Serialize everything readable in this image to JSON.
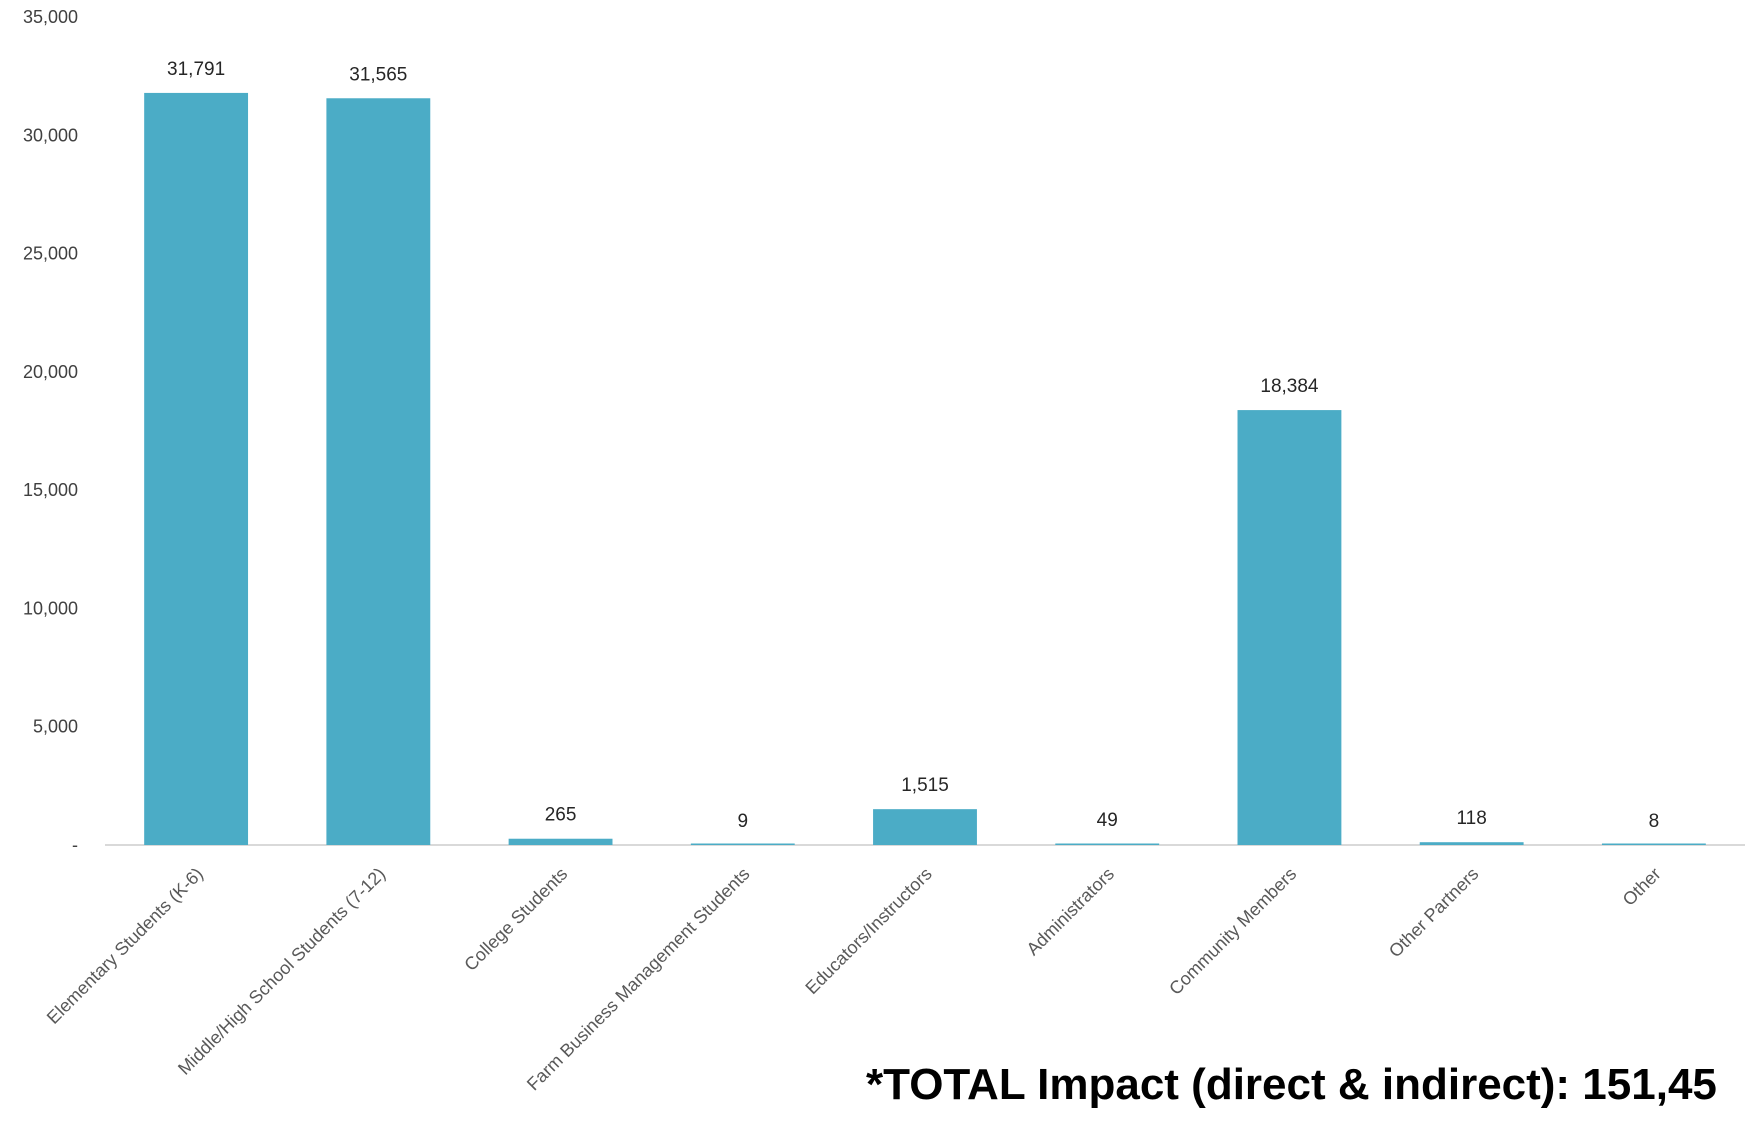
{
  "chart_data": {
    "type": "bar",
    "categories": [
      "Elementary Students (K-6)",
      "Middle/High School Students (7-12)",
      "College Students",
      "Farm Business Management Students",
      "Educators/Instructors",
      "Administrators",
      "Community Members",
      "Other Partners",
      "Other"
    ],
    "values": [
      31791,
      31565,
      265,
      9,
      1515,
      49,
      18384,
      118,
      8
    ],
    "data_labels": [
      "31,791",
      "31,565",
      "265",
      "9",
      "1,515",
      "49",
      "18,384",
      "118",
      "8"
    ],
    "ylim": [
      0,
      35000
    ],
    "yticks": [
      0,
      5000,
      10000,
      15000,
      20000,
      25000,
      30000,
      35000
    ],
    "ytick_labels": [
      "-",
      "5,000",
      "10,000",
      "15,000",
      "20,000",
      "25,000",
      "30,000",
      "35,000"
    ],
    "grid": false,
    "colors": {
      "bar": "#4BACC6",
      "axis": "#D9D9D9"
    }
  },
  "note": "*TOTAL Impact (direct & indirect):  151,45"
}
